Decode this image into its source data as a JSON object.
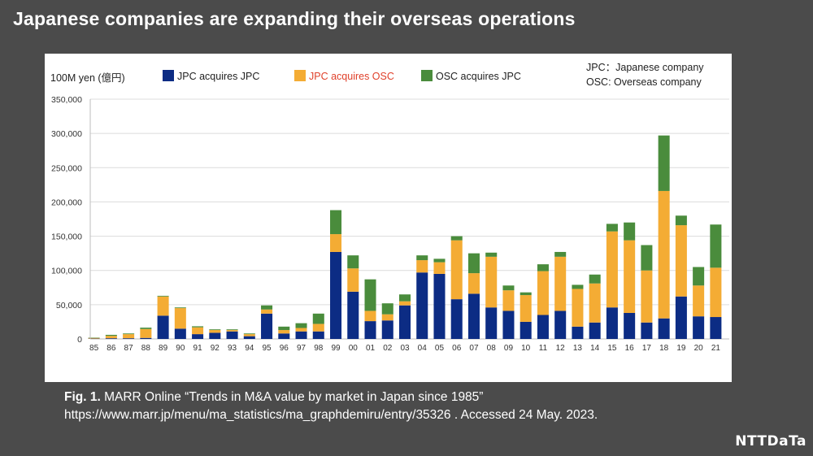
{
  "title": "Japanese companies are expanding their overseas operations",
  "caption": {
    "fig_label": "Fig. 1.",
    "text": "MARR Online “Trends in M&A value by market in Japan since 1985”",
    "url_line": "https://www.marr.jp/menu/ma_statistics/ma_graphdemiru/entry/35326 . Accessed 24 May. 2023."
  },
  "logo": "NTTDaTa",
  "chart_data": {
    "type": "bar",
    "stacked": true,
    "ylabel": "100M yen (億円)",
    "ylim": [
      0,
      350000
    ],
    "yticks": [
      "0",
      "50,000",
      "100,000",
      "150,000",
      "200,000",
      "250,000",
      "300,000",
      "350,000"
    ],
    "legend_position": "top",
    "note": [
      "JPC：Japanese company",
      "OSC: Overseas company"
    ],
    "categories": [
      "85",
      "86",
      "87",
      "88",
      "89",
      "90",
      "91",
      "92",
      "93",
      "94",
      "95",
      "96",
      "97",
      "98",
      "99",
      "00",
      "01",
      "02",
      "03",
      "04",
      "05",
      "06",
      "07",
      "08",
      "09",
      "10",
      "11",
      "12",
      "13",
      "14",
      "15",
      "16",
      "17",
      "18",
      "19",
      "20",
      "21"
    ],
    "series": [
      {
        "name": "JPC  acquires JPC",
        "color": "#0c2c84",
        "label_color": "#222222",
        "values": [
          500,
          1000,
          1000,
          1500,
          34000,
          15000,
          7000,
          9000,
          11000,
          4000,
          37000,
          8000,
          11000,
          11000,
          127000,
          69000,
          26000,
          27000,
          49000,
          97000,
          95000,
          58000,
          66000,
          46000,
          41000,
          25000,
          35000,
          41000,
          18000,
          24000,
          46000,
          38000,
          24000,
          30000,
          62000,
          33000,
          32000
        ]
      },
      {
        "name": "JPC  acquires OSC",
        "color": "#f4ac34",
        "label_color": "#e0402a",
        "values": [
          1000,
          3500,
          6000,
          13000,
          28000,
          30000,
          10000,
          4000,
          2000,
          3000,
          6000,
          5000,
          5000,
          11000,
          26000,
          34000,
          15000,
          9000,
          6000,
          18000,
          17000,
          86000,
          30000,
          74000,
          30000,
          39000,
          64000,
          79000,
          55000,
          57000,
          111000,
          106000,
          76000,
          186000,
          104000,
          45000,
          72000
        ]
      },
      {
        "name": "OSC  acquires JPC",
        "color": "#4a8c3c",
        "label_color": "#222222",
        "values": [
          500,
          1500,
          1000,
          2000,
          1000,
          1000,
          1500,
          1000,
          1000,
          1000,
          6000,
          5000,
          7000,
          15000,
          35000,
          19000,
          46000,
          16000,
          10000,
          7000,
          5000,
          6000,
          29000,
          6000,
          7000,
          4000,
          10000,
          7000,
          6000,
          13000,
          11000,
          26000,
          37000,
          81000,
          14000,
          27000,
          63000
        ]
      }
    ]
  }
}
